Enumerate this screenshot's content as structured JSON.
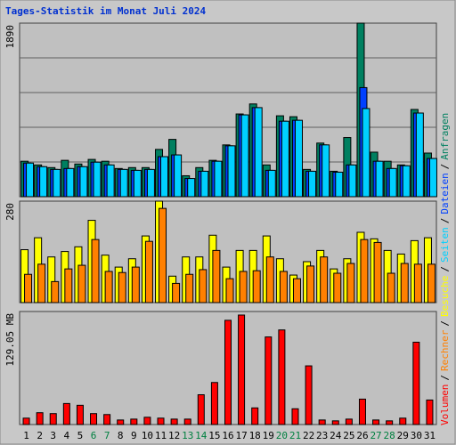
{
  "title": "Tages-Statistik im Monat Juli 2024",
  "legend_separator": "/",
  "categories": [
    "1",
    "2",
    "3",
    "4",
    "5",
    "6",
    "7",
    "8",
    "9",
    "10",
    "11",
    "12",
    "13",
    "14",
    "15",
    "16",
    "17",
    "18",
    "19",
    "20",
    "21",
    "22",
    "23",
    "24",
    "25",
    "26",
    "27",
    "28",
    "29",
    "30",
    "31"
  ],
  "highlight_categories": [
    5,
    6,
    12,
    13,
    19,
    20,
    26,
    27
  ],
  "highlight_color": "#008040",
  "chart_data": [
    {
      "type": "bar",
      "ylim": [
        0,
        1890
      ],
      "yticks": [
        1890
      ],
      "grid": true,
      "series": [
        {
          "name": "Anfragen",
          "color": "#008060",
          "values": [
            386,
            346,
            317,
            396,
            356,
            406,
            386,
            307,
            317,
            317,
            515,
            624,
            228,
            317,
            396,
            564,
            901,
            1010,
            346,
            881,
            871,
            297,
            584,
            277,
            644,
            1890,
            485,
            386,
            346,
            950,
            475
          ]
        },
        {
          "name": "Dateien",
          "color": "#0040ff",
          "values": [
            366,
            327,
            297,
            307,
            327,
            376,
            346,
            297,
            287,
            297,
            436,
            455,
            198,
            277,
            386,
            554,
            891,
            970,
            287,
            822,
            832,
            277,
            564,
            267,
            346,
            1188,
            386,
            307,
            337,
            911,
            416
          ]
        },
        {
          "name": "Seiten",
          "color": "#00d0ff",
          "values": [
            366,
            327,
            297,
            307,
            327,
            376,
            346,
            297,
            287,
            297,
            436,
            455,
            198,
            277,
            386,
            554,
            891,
            970,
            287,
            822,
            832,
            277,
            564,
            267,
            346,
            960,
            386,
            307,
            337,
            911,
            416
          ]
        }
      ]
    },
    {
      "type": "bar",
      "ylim": [
        0,
        280
      ],
      "yticks": [
        280
      ],
      "grid": false,
      "series": [
        {
          "name": "Besuche",
          "color": "#ffff00",
          "values": [
            146,
            179,
            126,
            141,
            154,
            227,
            131,
            98,
            121,
            184,
            280,
            73,
            126,
            126,
            186,
            98,
            144,
            144,
            184,
            121,
            76,
            113,
            144,
            93,
            121,
            194,
            176,
            144,
            134,
            171,
            179
          ]
        },
        {
          "name": "Rechner",
          "color": "#ff8000",
          "values": [
            78,
            106,
            58,
            93,
            103,
            174,
            86,
            83,
            98,
            169,
            260,
            53,
            78,
            91,
            144,
            66,
            86,
            88,
            126,
            86,
            66,
            101,
            126,
            81,
            108,
            174,
            166,
            81,
            108,
            106,
            106
          ]
        }
      ]
    },
    {
      "type": "bar",
      "ylim": [
        0,
        129.05
      ],
      "yticks": [
        {
          "value": 129.05,
          "label": "129.05 MB"
        }
      ],
      "grid": false,
      "series": [
        {
          "name": "Volumen",
          "color": "#ff0000",
          "values": [
            7.3,
            13.5,
            12.5,
            24,
            22,
            12.5,
            11.4,
            5.2,
            6.2,
            8.3,
            7.3,
            6.2,
            6.2,
            34,
            48,
            119,
            125,
            19,
            100,
            108,
            18,
            67,
            5.2,
            4.2,
            6.2,
            29,
            5.2,
            4.2,
            7.3,
            94,
            28
          ]
        }
      ]
    }
  ]
}
